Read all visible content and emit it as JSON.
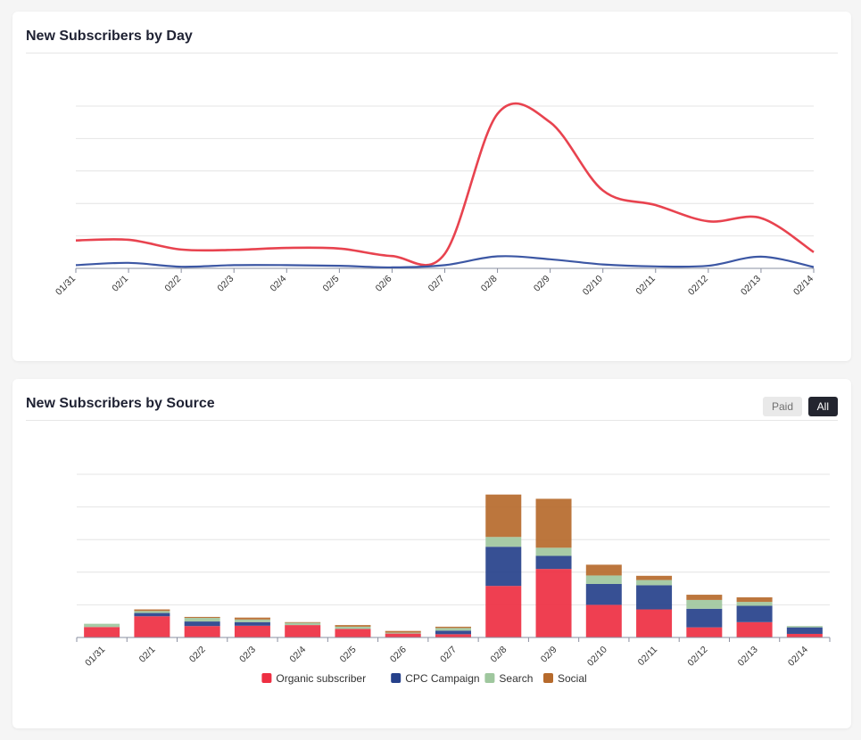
{
  "cards": {
    "day": {
      "title": "New Subscribers by Day"
    },
    "source": {
      "title": "New Subscribers by Source",
      "toggle_paid": "Paid",
      "toggle_all": "All",
      "active_toggle": "All"
    }
  },
  "chart_data": [
    {
      "type": "line",
      "title": "New Subscribers by Day",
      "x": [
        "01/31",
        "02/1",
        "02/2",
        "02/3",
        "02/4",
        "02/5",
        "02/6",
        "02/7",
        "02/8",
        "02/9",
        "02/10",
        "02/11",
        "02/12",
        "02/13",
        "02/14"
      ],
      "ylim": [
        0,
        5
      ],
      "grid": true,
      "series": [
        {
          "color": "#e8434f",
          "values": [
            0.86,
            0.88,
            0.58,
            0.57,
            0.63,
            0.61,
            0.38,
            0.45,
            4.76,
            4.5,
            2.4,
            1.95,
            1.45,
            1.55,
            0.5
          ]
        },
        {
          "color": "#3c57a4",
          "values": [
            0.1,
            0.17,
            0.05,
            0.1,
            0.1,
            0.08,
            0.03,
            0.1,
            0.37,
            0.28,
            0.12,
            0.06,
            0.08,
            0.36,
            0.04
          ]
        }
      ]
    },
    {
      "type": "bar",
      "stacked": true,
      "title": "New Subscribers by Source",
      "categories": [
        "01/31",
        "02/1",
        "02/2",
        "02/3",
        "02/4",
        "02/5",
        "02/6",
        "02/7",
        "02/8",
        "02/9",
        "02/10",
        "02/11",
        "02/12",
        "02/13",
        "02/14"
      ],
      "ylim": [
        0,
        5
      ],
      "grid": true,
      "legend": "bottom",
      "series": [
        {
          "name": "Organic subscriber",
          "color": "#ee2f42",
          "values": [
            0.32,
            0.65,
            0.35,
            0.36,
            0.38,
            0.26,
            0.12,
            0.1,
            1.58,
            2.1,
            1.0,
            0.86,
            0.31,
            0.47,
            0.11
          ]
        },
        {
          "name": "CPC Campaign",
          "color": "#26418b",
          "values": [
            0,
            0.1,
            0.14,
            0.11,
            0,
            0,
            0,
            0.11,
            1.2,
            0.4,
            0.64,
            0.74,
            0.57,
            0.5,
            0.2
          ]
        },
        {
          "name": "Search",
          "color": "#9fc79e",
          "values": [
            0.1,
            0.06,
            0.11,
            0.08,
            0.07,
            0.07,
            0.03,
            0.08,
            0.3,
            0.25,
            0.26,
            0.16,
            0.27,
            0.12,
            0.04
          ]
        },
        {
          "name": "Social",
          "color": "#b66a2c",
          "values": [
            0,
            0.05,
            0.03,
            0.06,
            0.02,
            0.05,
            0.05,
            0.04,
            1.3,
            1.5,
            0.33,
            0.13,
            0.16,
            0.14,
            0
          ]
        }
      ]
    }
  ]
}
